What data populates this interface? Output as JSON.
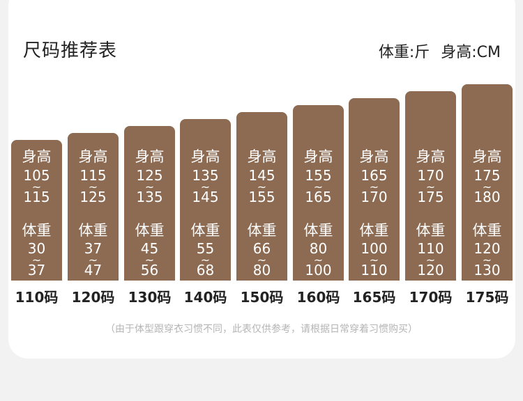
{
  "header": {
    "title": "尺码推荐表",
    "weight_unit": "体重:斤",
    "height_unit": "身高:CM"
  },
  "labels": {
    "height": "身高",
    "weight": "体重",
    "range_sep": "~"
  },
  "colors": {
    "bar": "#8c6b52",
    "text": "#222222",
    "note": "#b5b5b5"
  },
  "sizes": [
    {
      "size": "110码",
      "height_min": "105",
      "height_max": "115",
      "weight_min": "30",
      "weight_max": "37"
    },
    {
      "size": "120码",
      "height_min": "115",
      "height_max": "125",
      "weight_min": "37",
      "weight_max": "47"
    },
    {
      "size": "130码",
      "height_min": "125",
      "height_max": "135",
      "weight_min": "45",
      "weight_max": "56"
    },
    {
      "size": "140码",
      "height_min": "135",
      "height_max": "145",
      "weight_min": "55",
      "weight_max": "68"
    },
    {
      "size": "150码",
      "height_min": "145",
      "height_max": "155",
      "weight_min": "66",
      "weight_max": "80"
    },
    {
      "size": "160码",
      "height_min": "155",
      "height_max": "165",
      "weight_min": "80",
      "weight_max": "100"
    },
    {
      "size": "165码",
      "height_min": "165",
      "height_max": "170",
      "weight_min": "100",
      "weight_max": "110"
    },
    {
      "size": "170码",
      "height_min": "170",
      "height_max": "175",
      "weight_min": "110",
      "weight_max": "120"
    },
    {
      "size": "175码",
      "height_min": "175",
      "height_max": "180",
      "weight_min": "120",
      "weight_max": "130"
    }
  ],
  "note": "（由于体型跟穿衣习惯不同，此表仅供参考，请根据日常穿着习惯购买）"
}
